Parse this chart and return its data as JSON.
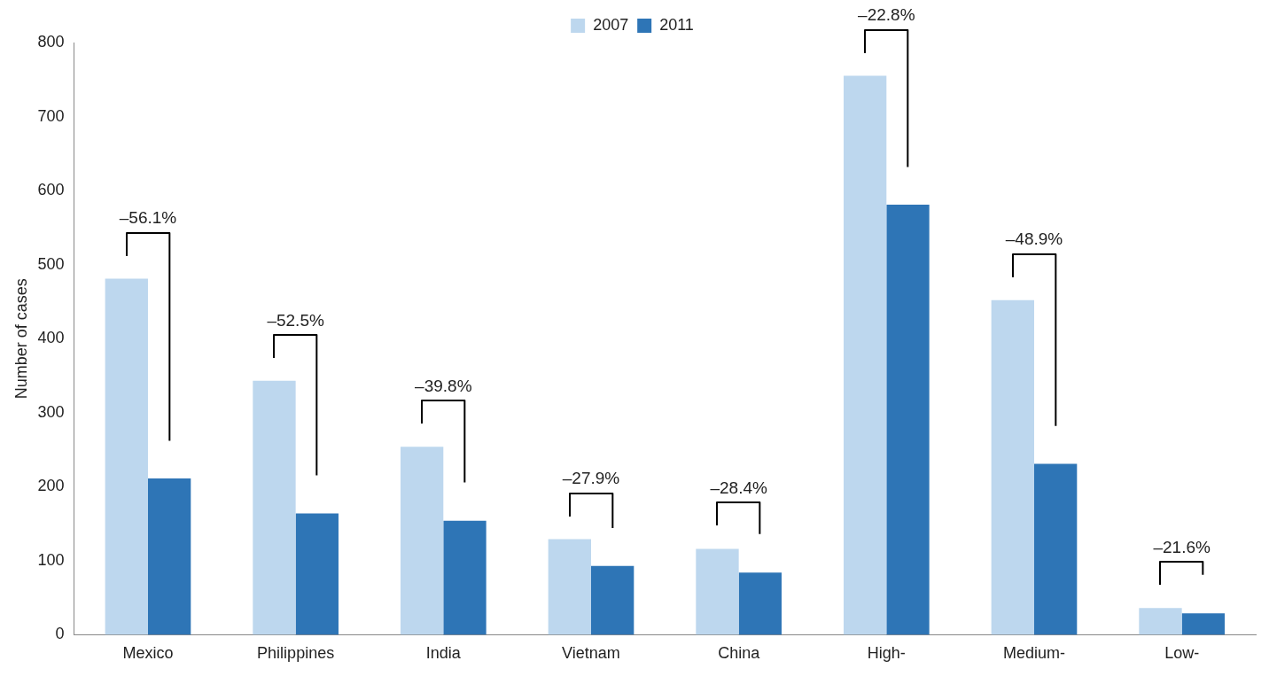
{
  "chart_data": {
    "type": "bar",
    "ylabel": "Number of cases",
    "categories": [
      "Mexico",
      "Philippines",
      "India",
      "Vietnam",
      "China",
      "High-",
      "Medium-",
      "Low-"
    ],
    "series": [
      {
        "name": "2007",
        "color": "#bdd7ee",
        "values": [
          481,
          343,
          254,
          129,
          116,
          755,
          452,
          36
        ]
      },
      {
        "name": "2011",
        "color": "#2e75b6",
        "values": [
          211,
          164,
          154,
          93,
          84,
          581,
          231,
          29
        ]
      }
    ],
    "ylim": [
      0,
      800
    ],
    "yticks": [
      0,
      100,
      200,
      300,
      400,
      500,
      600,
      700,
      800
    ],
    "grid": false,
    "legend": "top",
    "annotations": [
      "–56.1%",
      "–52.5%",
      "–39.8%",
      "–27.9%",
      "–28.4%",
      "–22.8%",
      "–48.9%",
      "–21.6%"
    ]
  }
}
